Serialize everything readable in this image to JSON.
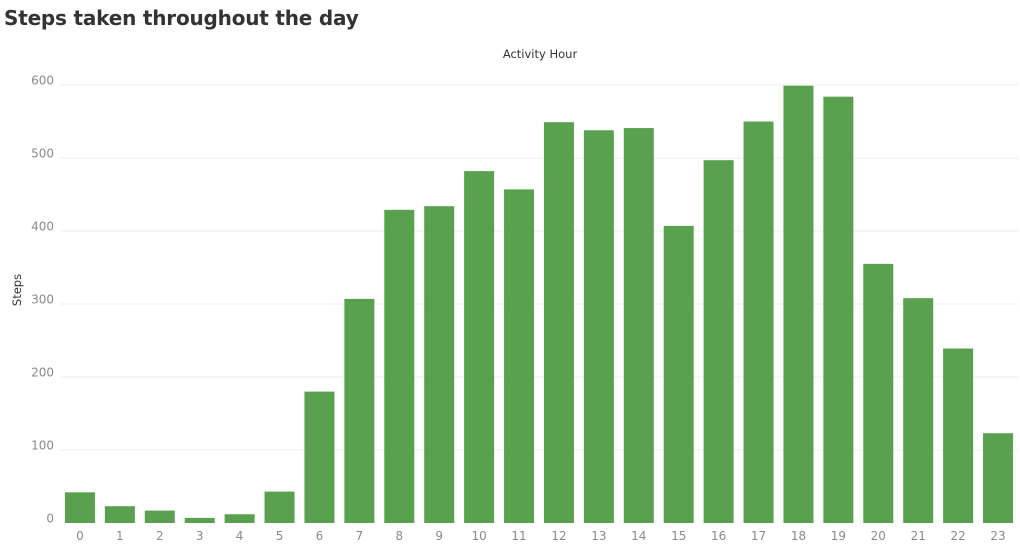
{
  "title": "Steps taken throughout the day",
  "chart_data": {
    "type": "bar",
    "title": "Steps taken throughout the day",
    "xlabel": "Activity Hour",
    "ylabel": "Steps",
    "categories": [
      "0",
      "1",
      "2",
      "3",
      "4",
      "5",
      "6",
      "7",
      "8",
      "9",
      "10",
      "11",
      "12",
      "13",
      "14",
      "15",
      "16",
      "17",
      "18",
      "19",
      "20",
      "21",
      "22",
      "23"
    ],
    "values": [
      42,
      23,
      17,
      7,
      12,
      43,
      180,
      307,
      429,
      434,
      482,
      457,
      549,
      538,
      541,
      407,
      497,
      550,
      599,
      584,
      355,
      308,
      239,
      123
    ],
    "ylim": [
      0,
      620
    ],
    "yticks": [
      0,
      100,
      200,
      300,
      400,
      500,
      600
    ],
    "grid": true,
    "bar_color": "#59a14f",
    "legend": "none"
  }
}
